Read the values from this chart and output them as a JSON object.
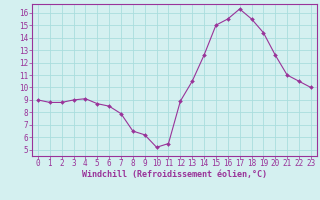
{
  "x": [
    0,
    1,
    2,
    3,
    4,
    5,
    6,
    7,
    8,
    9,
    10,
    11,
    12,
    13,
    14,
    15,
    16,
    17,
    18,
    19,
    20,
    21,
    22,
    23
  ],
  "y": [
    9.0,
    8.8,
    8.8,
    9.0,
    9.1,
    8.7,
    8.5,
    7.9,
    6.5,
    6.2,
    5.2,
    5.5,
    8.9,
    10.5,
    12.6,
    15.0,
    15.5,
    16.3,
    15.5,
    14.4,
    12.6,
    11.0,
    10.5,
    10.0
  ],
  "line_color": "#993399",
  "marker_color": "#993399",
  "bg_color": "#d4f0f0",
  "grid_color": "#aadddd",
  "xlabel": "Windchill (Refroidissement éolien,°C)",
  "xlim": [
    -0.5,
    23.5
  ],
  "ylim": [
    4.5,
    16.7
  ],
  "yticks": [
    5,
    6,
    7,
    8,
    9,
    10,
    11,
    12,
    13,
    14,
    15,
    16
  ],
  "xticks": [
    0,
    1,
    2,
    3,
    4,
    5,
    6,
    7,
    8,
    9,
    10,
    11,
    12,
    13,
    14,
    15,
    16,
    17,
    18,
    19,
    20,
    21,
    22,
    23
  ],
  "tick_color": "#993399",
  "tick_fontsize": 5.5,
  "xlabel_fontsize": 6.0,
  "border_color": "#993399"
}
